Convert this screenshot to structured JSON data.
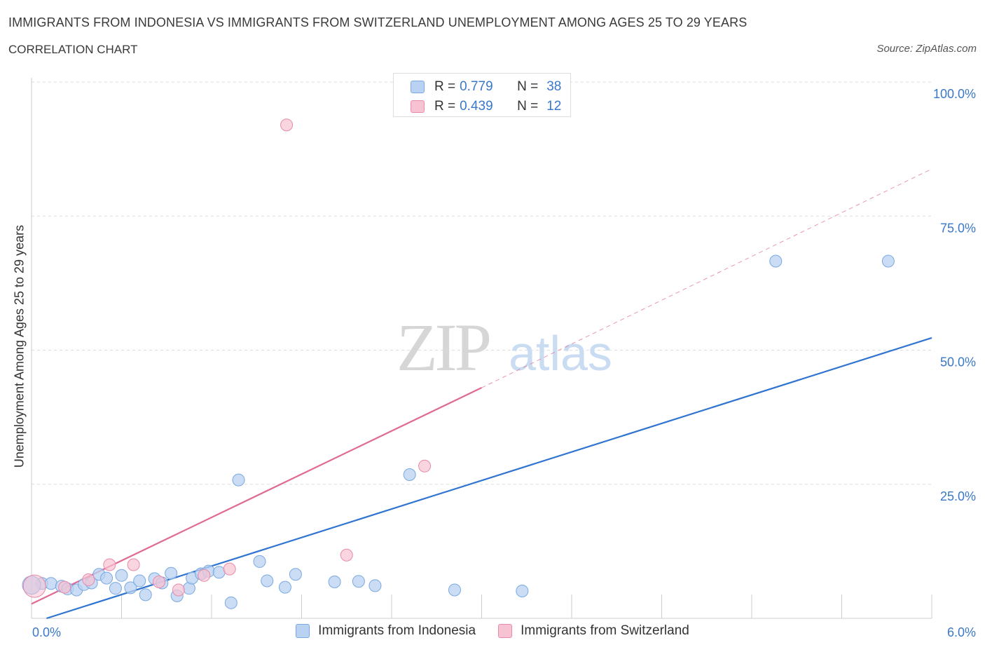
{
  "header": {
    "title": "IMMIGRANTS FROM INDONESIA VS IMMIGRANTS FROM SWITZERLAND UNEMPLOYMENT AMONG AGES 25 TO 29 YEARS",
    "subtitle": "CORRELATION CHART",
    "source": "Source: ZipAtlas.com"
  },
  "watermark": {
    "zip": "ZIP",
    "atlas": "atlas"
  },
  "legend": {
    "rows": [
      {
        "r_label": "R =",
        "r_value": "0.779",
        "n_label": "N =",
        "n_value": "38"
      },
      {
        "r_label": "R =",
        "r_value": "0.439",
        "n_label": "N =",
        "n_value": "12"
      }
    ]
  },
  "bottom_legend": {
    "indonesia": "Immigrants from Indonesia",
    "switzerland": "Immigrants from Switzerland"
  },
  "colors": {
    "indonesia_fill": "#b9d2f2",
    "indonesia_stroke": "#7aa8e0",
    "indonesia_line": "#2f74d0",
    "switzerland_fill": "#f7c3d3",
    "switzerland_stroke": "#e88aa8",
    "switzerland_line": "#e06a93",
    "tick_label": "#3a78c9",
    "grid": "#dddddd"
  },
  "chart_data": {
    "type": "scatter",
    "title": "IMMIGRANTS FROM INDONESIA VS IMMIGRANTS FROM SWITZERLAND UNEMPLOYMENT AMONG AGES 25 TO 29 YEARS",
    "xlabel": "",
    "ylabel": "Unemployment Among Ages 25 to 29 years",
    "xlim": [
      0,
      6
    ],
    "ylim": [
      0,
      100
    ],
    "x_tick_labels": [
      "0.0%",
      "6.0%"
    ],
    "y_ticks": [
      25,
      50,
      75,
      100
    ],
    "y_tick_labels": [
      "25.0%",
      "50.0%",
      "75.0%",
      "100.0%"
    ],
    "series": [
      {
        "name": "Immigrants from Indonesia",
        "R": 0.779,
        "N": 38,
        "trend": {
          "x": [
            0.1,
            6.0
          ],
          "y": [
            0.0,
            52.3
          ]
        },
        "points": [
          [
            0.07,
            6.5
          ],
          [
            0.13,
            6.5
          ],
          [
            0.2,
            6.0
          ],
          [
            0.24,
            5.5
          ],
          [
            0.3,
            5.3
          ],
          [
            0.35,
            6.3
          ],
          [
            0.4,
            6.6
          ],
          [
            0.45,
            8.2
          ],
          [
            0.5,
            7.5
          ],
          [
            0.56,
            5.6
          ],
          [
            0.6,
            8.0
          ],
          [
            0.66,
            5.7
          ],
          [
            0.72,
            7.0
          ],
          [
            0.76,
            4.4
          ],
          [
            0.82,
            7.4
          ],
          [
            0.87,
            6.6
          ],
          [
            0.93,
            8.4
          ],
          [
            0.97,
            4.2
          ],
          [
            1.05,
            5.6
          ],
          [
            1.07,
            7.5
          ],
          [
            1.13,
            8.3
          ],
          [
            1.18,
            8.8
          ],
          [
            1.25,
            8.6
          ],
          [
            1.33,
            2.9
          ],
          [
            1.38,
            25.8
          ],
          [
            1.52,
            10.6
          ],
          [
            1.57,
            7.0
          ],
          [
            1.69,
            5.8
          ],
          [
            1.76,
            8.2
          ],
          [
            2.02,
            6.8
          ],
          [
            2.18,
            6.9
          ],
          [
            2.29,
            6.1
          ],
          [
            2.52,
            26.8
          ],
          [
            2.82,
            5.3
          ],
          [
            3.27,
            5.1
          ],
          [
            4.96,
            66.6
          ],
          [
            5.71,
            66.6
          ],
          [
            0.0,
            6.2
          ]
        ]
      },
      {
        "name": "Immigrants from Switzerland",
        "R": 0.439,
        "N": 12,
        "trend": {
          "x": [
            0.0,
            3.0
          ],
          "y": [
            2.7,
            43.0
          ]
        },
        "trend_dashed": {
          "x": [
            3.0,
            6.0
          ],
          "y": [
            43.0,
            83.8
          ]
        },
        "points": [
          [
            0.02,
            6.0
          ],
          [
            0.22,
            5.8
          ],
          [
            0.38,
            7.2
          ],
          [
            0.52,
            10.0
          ],
          [
            0.68,
            10.0
          ],
          [
            0.85,
            6.8
          ],
          [
            0.98,
            5.3
          ],
          [
            1.15,
            8.0
          ],
          [
            1.32,
            9.2
          ],
          [
            1.7,
            92.0
          ],
          [
            2.1,
            11.8
          ],
          [
            2.62,
            28.4
          ]
        ]
      }
    ]
  }
}
